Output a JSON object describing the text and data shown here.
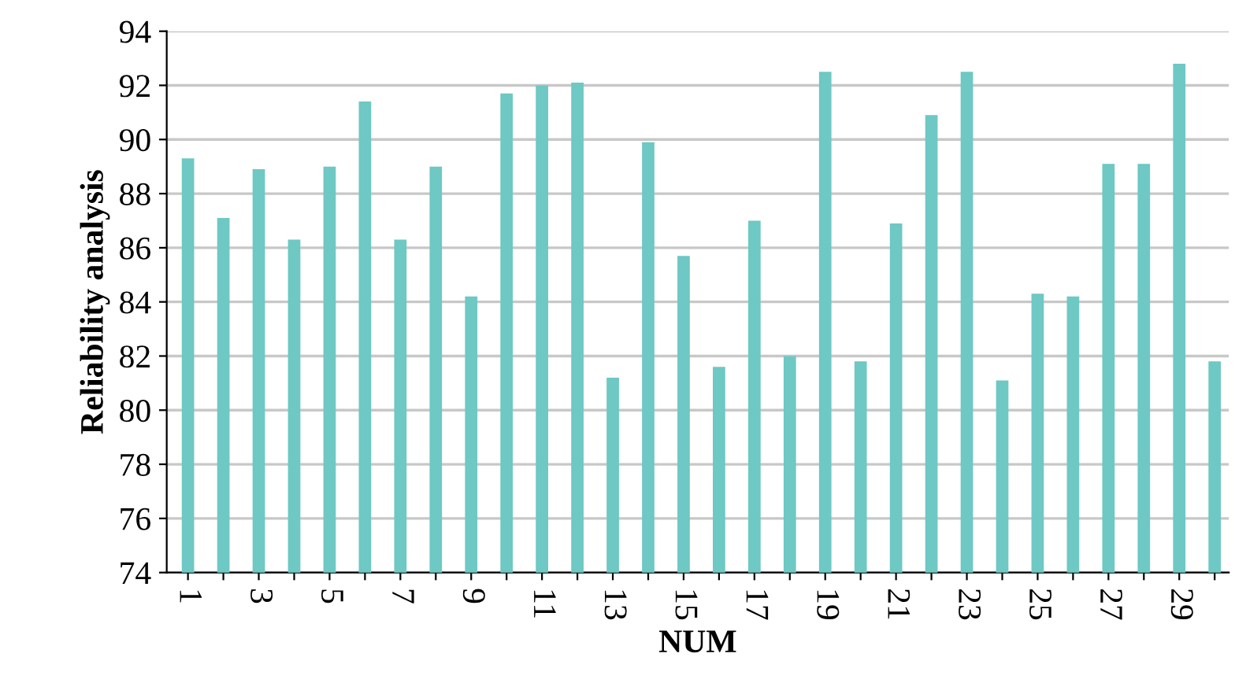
{
  "chart_data": {
    "type": "bar",
    "xlabel": "NUM",
    "ylabel": "Reliability analysis",
    "categories": [
      "1",
      null,
      "3",
      null,
      "5",
      null,
      "7",
      null,
      "9",
      null,
      "11",
      null,
      "13",
      null,
      "15",
      null,
      "17",
      null,
      "19",
      null,
      "21",
      null,
      "23",
      null,
      "25",
      null,
      "27",
      null,
      "29",
      null
    ],
    "values": [
      89.3,
      87.1,
      88.9,
      86.3,
      89.0,
      91.4,
      86.3,
      89.0,
      84.2,
      91.7,
      92.0,
      92.1,
      81.2,
      89.9,
      85.7,
      81.6,
      87.0,
      82.0,
      92.5,
      81.8,
      86.9,
      90.9,
      92.5,
      81.1,
      84.3,
      84.2,
      89.1,
      89.1,
      92.8,
      81.8
    ],
    "color": "#6ec8c4",
    "ylim": [
      74,
      94
    ],
    "yticks": [
      74,
      76,
      78,
      80,
      82,
      84,
      86,
      88,
      90,
      92,
      94
    ],
    "grid": "y"
  }
}
